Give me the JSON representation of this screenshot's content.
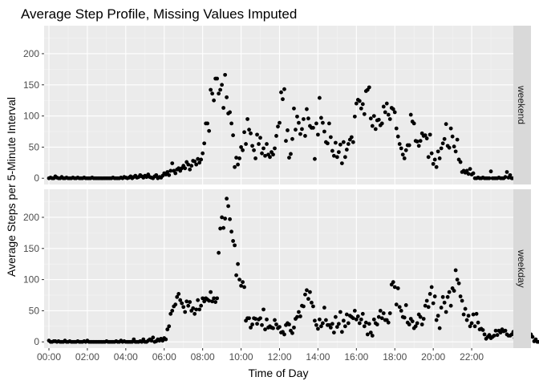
{
  "chart_data": {
    "type": "scatter",
    "title": "Average Step Profile, Missing Values Imputed",
    "xlabel": "Time of Day",
    "ylabel": "Average Steps per 5-Minute Interval",
    "x_unit": "minutes of day",
    "xlim": [
      0,
      1440
    ],
    "ylim": [
      0,
      240
    ],
    "x_ticks": [
      0,
      120,
      240,
      360,
      480,
      600,
      720,
      840,
      960,
      1080,
      1200,
      1320
    ],
    "x_tick_labels": [
      "00:00",
      "02:00",
      "04:00",
      "06:00",
      "08:00",
      "10:00",
      "12:00",
      "14:00",
      "16:00",
      "18:00",
      "20:00",
      "22:00"
    ],
    "y_ticks": [
      0,
      50,
      100,
      150,
      200
    ],
    "y_tick_labels": [
      "0",
      "50",
      "100",
      "150",
      "200"
    ],
    "grid": true,
    "facets": [
      {
        "name": "weekend",
        "x_step": 5,
        "values": [
          0,
          1,
          0,
          0,
          3,
          1,
          0,
          0,
          2,
          0,
          0,
          1,
          0,
          0,
          0,
          1,
          0,
          0,
          1,
          0,
          0,
          0,
          1,
          0,
          0,
          0,
          0,
          1,
          0,
          0,
          0,
          0,
          0,
          0,
          0,
          0,
          0,
          0,
          0,
          0,
          1,
          0,
          0,
          0,
          0,
          1,
          0,
          2,
          1,
          0,
          1,
          3,
          0,
          2,
          4,
          1,
          2,
          5,
          3,
          1,
          4,
          2,
          6,
          2,
          1,
          0,
          3,
          5,
          0,
          2,
          1,
          4,
          8,
          6,
          10,
          5,
          12,
          24,
          12,
          8,
          14,
          16,
          12,
          16,
          20,
          16,
          26,
          22,
          14,
          20,
          28,
          27,
          22,
          31,
          25,
          30,
          40,
          56,
          88,
          88,
          76,
          142,
          136,
          125,
          160,
          160,
          136,
          142,
          150,
          113,
          166,
          130,
          104,
          106,
          88,
          69,
          18,
          33,
          22,
          32,
          50,
          45,
          74,
          55,
          95,
          78,
          72,
          52,
          45,
          32,
          70,
          55,
          65,
          40,
          48,
          36,
          55,
          38,
          34,
          42,
          38,
          48,
          68,
          83,
          89,
          138,
          127,
          143,
          60,
          77,
          33,
          39,
          63,
          112,
          78,
          99,
          89,
          71,
          79,
          95,
          68,
          111,
          96,
          84,
          81,
          81,
          31,
          88,
          70,
          129,
          97,
          89,
          75,
          58,
          56,
          88,
          66,
          44,
          36,
          57,
          34,
          42,
          54,
          24,
          58,
          34,
          46,
          55,
          62,
          66,
          58,
          99,
          120,
          126,
          124,
          112,
          119,
          103,
          140,
          142,
          146,
          96,
          84,
          100,
          79,
          93,
          94,
          85,
          88,
          115,
          106,
          120,
          102,
          95,
          113,
          111,
          106,
          80,
          67,
          55,
          48,
          38,
          32,
          45,
          53,
          53,
          102,
          91,
          88,
          60,
          59,
          52,
          60,
          72,
          68,
          69,
          64,
          34,
          70,
          40,
          23,
          30,
          18,
          43,
          32,
          48,
          56,
          63,
          87,
          52,
          49,
          80,
          67,
          51,
          43,
          62,
          30,
          26,
          10,
          12,
          9,
          12,
          7,
          15,
          6,
          8,
          0,
          0,
          1,
          0,
          0,
          1,
          0,
          0,
          0,
          0,
          11,
          0,
          0,
          0,
          0,
          1,
          0,
          0,
          0,
          2,
          10,
          1,
          5,
          0,
          0
        ]
      },
      {
        "name": "weekday",
        "x_step": 5,
        "values": [
          2,
          0,
          0,
          1,
          1,
          0,
          1,
          0,
          0,
          0,
          2,
          0,
          0,
          1,
          0,
          0,
          0,
          0,
          1,
          0,
          0,
          0,
          1,
          0,
          2,
          0,
          0,
          0,
          0,
          0,
          0,
          0,
          0,
          0,
          0,
          0,
          1,
          0,
          0,
          0,
          0,
          0,
          1,
          0,
          0,
          2,
          0,
          1,
          0,
          0,
          0,
          0,
          0,
          4,
          0,
          0,
          0,
          1,
          0,
          4,
          0,
          0,
          2,
          4,
          2,
          7,
          0,
          1,
          4,
          2,
          5,
          2,
          6,
          4,
          20,
          25,
          45,
          50,
          57,
          60,
          72,
          77,
          67,
          62,
          56,
          48,
          65,
          58,
          64,
          50,
          54,
          45,
          52,
          67,
          52,
          58,
          70,
          65,
          70,
          68,
          66,
          80,
          65,
          70,
          64,
          70,
          143,
          182,
          200,
          183,
          198,
          230,
          218,
          197,
          177,
          162,
          155,
          107,
          125,
          100,
          90,
          96,
          88,
          34,
          38,
          38,
          23,
          28,
          38,
          37,
          29,
          36,
          38,
          27,
          52,
          20,
          36,
          23,
          25,
          23,
          22,
          35,
          28,
          22,
          24,
          15,
          16,
          12,
          27,
          30,
          28,
          18,
          14,
          23,
          37,
          40,
          48,
          41,
          58,
          57,
          76,
          83,
          69,
          80,
          63,
          57,
          34,
          27,
          21,
          36,
          25,
          30,
          55,
          35,
          27,
          27,
          23,
          29,
          15,
          40,
          24,
          29,
          48,
          16,
          34,
          25,
          44,
          30,
          42,
          40,
          38,
          50,
          36,
          41,
          30,
          36,
          45,
          25,
          31,
          12,
          29,
          15,
          10,
          36,
          30,
          28,
          40,
          50,
          38,
          46,
          35,
          35,
          31,
          46,
          92,
          96,
          88,
          60,
          86,
          56,
          50,
          40,
          39,
          59,
          31,
          28,
          37,
          33,
          22,
          25,
          30,
          44,
          40,
          28,
          37,
          58,
          66,
          56,
          77,
          88,
          62,
          73,
          35,
          42,
          22,
          55,
          72,
          63,
          48,
          72,
          80,
          58,
          86,
          82,
          115,
          100,
          94,
          73,
          66,
          44,
          53,
          35,
          42,
          25,
          30,
          44,
          25,
          45,
          31,
          20,
          21,
          19,
          12,
          5,
          8,
          11,
          6,
          8,
          10,
          18,
          11,
          18,
          15,
          20,
          17,
          18,
          12,
          10,
          10,
          12,
          16,
          6,
          4,
          0,
          0,
          6,
          2,
          2,
          9,
          5,
          10,
          12,
          8,
          1,
          4,
          0,
          0,
          1,
          0,
          5,
          0,
          1,
          4,
          2,
          0,
          3,
          2,
          0,
          0,
          4,
          2,
          0,
          3,
          3,
          0
        ]
      }
    ]
  }
}
